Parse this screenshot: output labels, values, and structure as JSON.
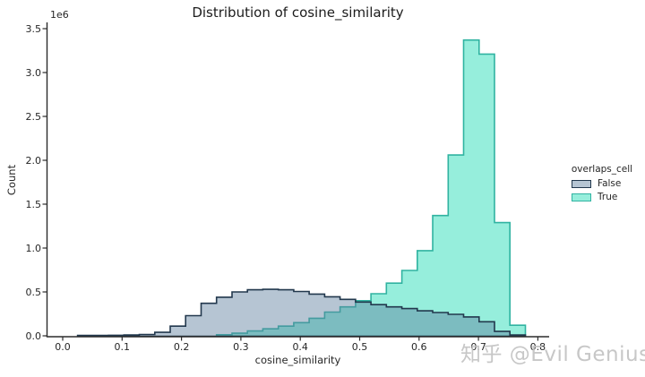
{
  "figure": {
    "watermark": "知乎 @Evil Genius"
  },
  "chart_data": {
    "type": "histogram",
    "element": "step-filled",
    "title": "Distribution of cosine_similarity",
    "xlabel": "cosine_similarity",
    "ylabel": "Count",
    "y_offset_text": "1e6",
    "x_ticks": [
      0.0,
      0.1,
      0.2,
      0.3,
      0.4,
      0.5,
      0.6,
      0.7,
      0.8
    ],
    "y_ticks": [
      0,
      500000,
      1000000,
      1500000,
      2000000,
      2500000,
      3000000,
      3500000
    ],
    "xlim": [
      -0.027,
      0.819
    ],
    "ylim": [
      0,
      3580000
    ],
    "grid": false,
    "bin_edges": [
      0.025,
      0.051,
      0.077,
      0.103,
      0.129,
      0.155,
      0.181,
      0.207,
      0.233,
      0.259,
      0.285,
      0.311,
      0.337,
      0.363,
      0.389,
      0.415,
      0.441,
      0.467,
      0.493,
      0.519,
      0.545,
      0.571,
      0.597,
      0.623,
      0.649,
      0.675,
      0.701,
      0.727,
      0.753,
      0.779
    ],
    "series": [
      {
        "name": "False",
        "values": [
          4000,
          5000,
          6000,
          9000,
          15000,
          40000,
          110000,
          230000,
          370000,
          440000,
          500000,
          525000,
          530000,
          525000,
          505000,
          475000,
          445000,
          415000,
          385000,
          355000,
          330000,
          310000,
          285000,
          265000,
          245000,
          215000,
          160000,
          50000,
          10000
        ],
        "fill": "#5d7f9e",
        "fill_opacity": 0.45,
        "stroke": "#22384d"
      },
      {
        "name": "True",
        "values": [
          0,
          0,
          0,
          0,
          0,
          0,
          0,
          0,
          0,
          12000,
          30000,
          55000,
          80000,
          110000,
          150000,
          200000,
          270000,
          330000,
          400000,
          480000,
          600000,
          745000,
          970000,
          1370000,
          2060000,
          3370000,
          3210000,
          1290000,
          120000
        ],
        "fill": "#40e0c0",
        "fill_opacity": 0.55,
        "stroke": "#30b3a1"
      }
    ],
    "legend": {
      "title": "overlaps_cell",
      "labels": [
        "False",
        "True"
      ],
      "position": "right"
    },
    "axis_color": "#2b2b2b",
    "tick_label_color": "#262626"
  }
}
